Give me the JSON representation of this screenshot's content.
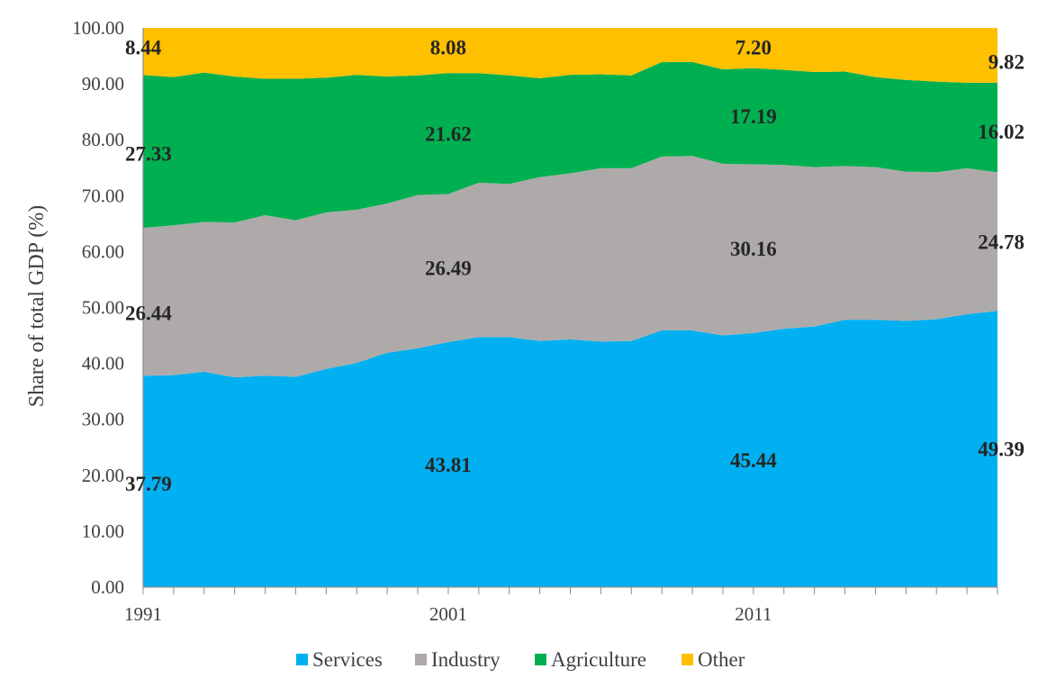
{
  "chart_data": {
    "type": "area",
    "stacked": true,
    "ylabel": "Share of total GDP (%)",
    "xlabel": "",
    "ylim": [
      0,
      100
    ],
    "y_ticks": [
      "0.00",
      "10.00",
      "20.00",
      "30.00",
      "40.00",
      "50.00",
      "60.00",
      "70.00",
      "80.00",
      "90.00",
      "100.00"
    ],
    "x_tick_labels": [
      {
        "year": 1991,
        "label": "1991"
      },
      {
        "year": 2001,
        "label": "2001"
      },
      {
        "year": 2011,
        "label": "2011"
      }
    ],
    "x": [
      1991,
      1992,
      1993,
      1994,
      1995,
      1996,
      1997,
      1998,
      1999,
      2000,
      2001,
      2002,
      2003,
      2004,
      2005,
      2006,
      2007,
      2008,
      2009,
      2010,
      2011,
      2012,
      2013,
      2014,
      2015,
      2016,
      2017,
      2018,
      2019
    ],
    "series": [
      {
        "name": "Services",
        "color": "#00B0F0",
        "values": [
          37.79,
          37.9,
          38.5,
          37.5,
          37.8,
          37.6,
          39.0,
          40.1,
          41.9,
          42.7,
          43.81,
          44.7,
          44.7,
          44.0,
          44.3,
          43.9,
          44.0,
          45.9,
          45.9,
          45.0,
          45.44,
          46.2,
          46.6,
          47.8,
          47.8,
          47.6,
          47.9,
          48.8,
          49.39
        ]
      },
      {
        "name": "Industry",
        "color": "#AEAAAA",
        "values": [
          26.44,
          26.8,
          26.8,
          27.7,
          28.7,
          28.0,
          28.0,
          27.4,
          26.7,
          27.4,
          26.49,
          27.6,
          27.4,
          29.3,
          29.7,
          31.0,
          30.9,
          31.1,
          31.2,
          30.7,
          30.16,
          29.3,
          28.5,
          27.5,
          27.3,
          26.7,
          26.3,
          26.1,
          24.78
        ]
      },
      {
        "name": "Agriculture",
        "color": "#00B050",
        "values": [
          27.33,
          26.5,
          26.7,
          26.1,
          24.4,
          25.3,
          24.1,
          24.1,
          22.7,
          21.4,
          21.62,
          19.6,
          19.4,
          17.7,
          17.6,
          16.8,
          16.6,
          16.9,
          16.8,
          16.9,
          17.19,
          17.0,
          17.0,
          16.9,
          16.1,
          16.4,
          16.2,
          15.3,
          16.02
        ]
      },
      {
        "name": "Other",
        "color": "#FFC000",
        "values": [
          8.44,
          8.8,
          8.0,
          8.7,
          9.1,
          9.1,
          8.9,
          8.4,
          8.7,
          8.5,
          8.08,
          8.1,
          8.5,
          9.0,
          8.4,
          8.3,
          8.5,
          6.1,
          6.1,
          7.4,
          7.2,
          7.5,
          7.9,
          7.8,
          8.8,
          9.3,
          9.6,
          9.8,
          9.82
        ]
      }
    ],
    "data_labels": [
      {
        "series": "Services",
        "year": 1991,
        "value": 37.79,
        "text": "37.79"
      },
      {
        "series": "Services",
        "year": 2001,
        "value": 43.81,
        "text": "43.81"
      },
      {
        "series": "Services",
        "year": 2011,
        "value": 45.44,
        "text": "45.44"
      },
      {
        "series": "Services",
        "year": 2019,
        "value": 49.39,
        "text": "49.39"
      },
      {
        "series": "Industry",
        "year": 1991,
        "value": 26.44,
        "text": "26.44"
      },
      {
        "series": "Industry",
        "year": 2001,
        "value": 26.49,
        "text": "26.49"
      },
      {
        "series": "Industry",
        "year": 2011,
        "value": 30.16,
        "text": "30.16"
      },
      {
        "series": "Industry",
        "year": 2019,
        "value": 24.78,
        "text": "24.78"
      },
      {
        "series": "Agriculture",
        "year": 1991,
        "value": 27.33,
        "text": "27.33"
      },
      {
        "series": "Agriculture",
        "year": 2001,
        "value": 21.62,
        "text": "21.62"
      },
      {
        "series": "Agriculture",
        "year": 2011,
        "value": 17.19,
        "text": "17.19"
      },
      {
        "series": "Agriculture",
        "year": 2019,
        "value": 16.02,
        "text": "16.02"
      },
      {
        "series": "Other",
        "year": 1991,
        "value": 8.44,
        "text": "8.44"
      },
      {
        "series": "Other",
        "year": 2001,
        "value": 8.08,
        "text": "8.08"
      },
      {
        "series": "Other",
        "year": 2011,
        "value": 7.2,
        "text": "7.20"
      },
      {
        "series": "Other",
        "year": 2019,
        "value": 9.82,
        "text": "9.82"
      }
    ],
    "legend": {
      "position": "bottom",
      "items": [
        "Services",
        "Industry",
        "Agriculture",
        "Other"
      ]
    },
    "grid": false
  }
}
